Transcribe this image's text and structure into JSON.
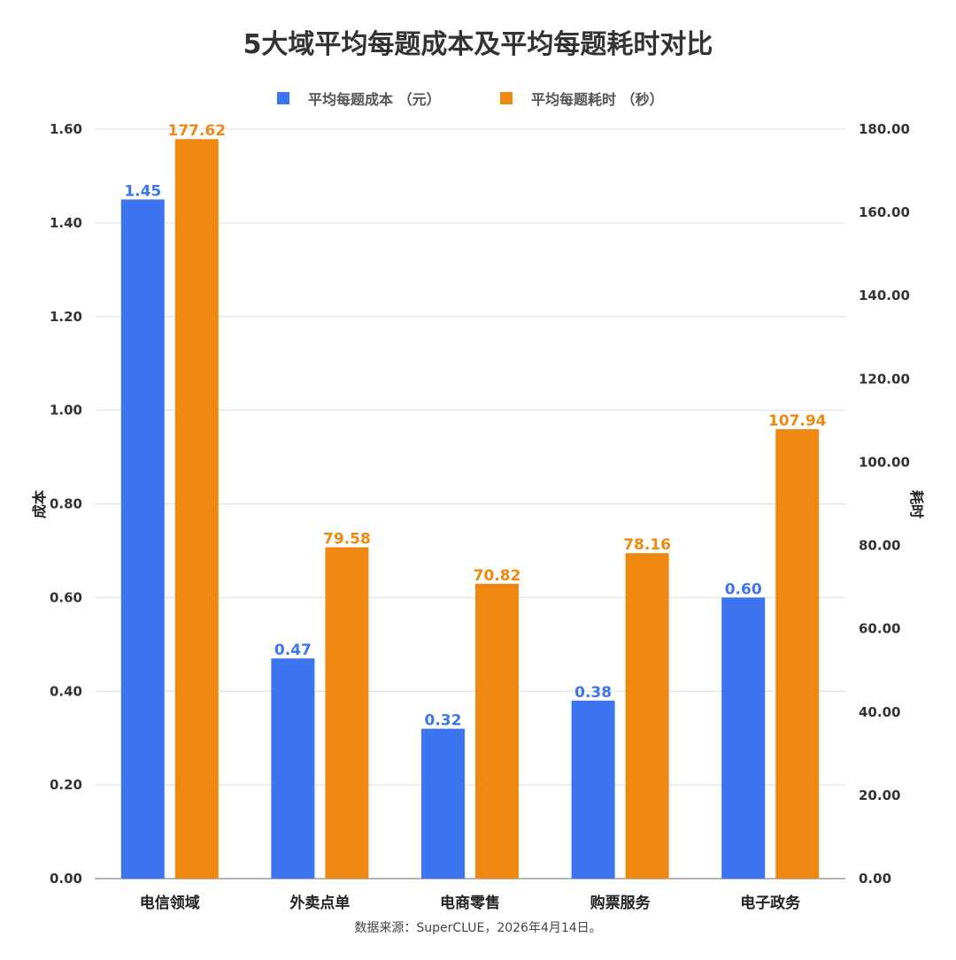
{
  "chart_data": {
    "type": "bar",
    "title": "5大域平均每题成本及平均每题耗时对比",
    "categories": [
      "电信领域",
      "外卖点单",
      "电商零售",
      "购票服务",
      "电子政务"
    ],
    "series": [
      {
        "name": "平均每题成本 （元）",
        "axis": "left",
        "color": "#3c75ef",
        "values": [
          1.45,
          0.47,
          0.32,
          0.38,
          0.6
        ],
        "labels": [
          "1.45",
          "0.47",
          "0.32",
          "0.38",
          "0.60"
        ]
      },
      {
        "name": "平均每题耗时 （秒）",
        "axis": "right",
        "color": "#ef8811",
        "values": [
          177.62,
          79.58,
          70.82,
          78.16,
          107.94
        ],
        "labels": [
          "177.62",
          "79.58",
          "70.82",
          "78.16",
          "107.94"
        ]
      }
    ],
    "ylabel": "成本",
    "y2label": "耗时",
    "ylim": [
      0,
      1.6
    ],
    "y2lim": [
      0,
      180
    ],
    "yticks": [
      "0.00",
      "0.20",
      "0.40",
      "0.60",
      "0.80",
      "1.00",
      "1.20",
      "1.40",
      "1.60"
    ],
    "y2ticks": [
      "0.00",
      "20.00",
      "40.00",
      "60.00",
      "80.00",
      "100.00",
      "120.00",
      "140.00",
      "160.00",
      "180.00"
    ],
    "legend_position": "top-center",
    "grid": true
  },
  "footer": {
    "source": "数据来源：SuperCLUE，2026年4月14日。"
  }
}
